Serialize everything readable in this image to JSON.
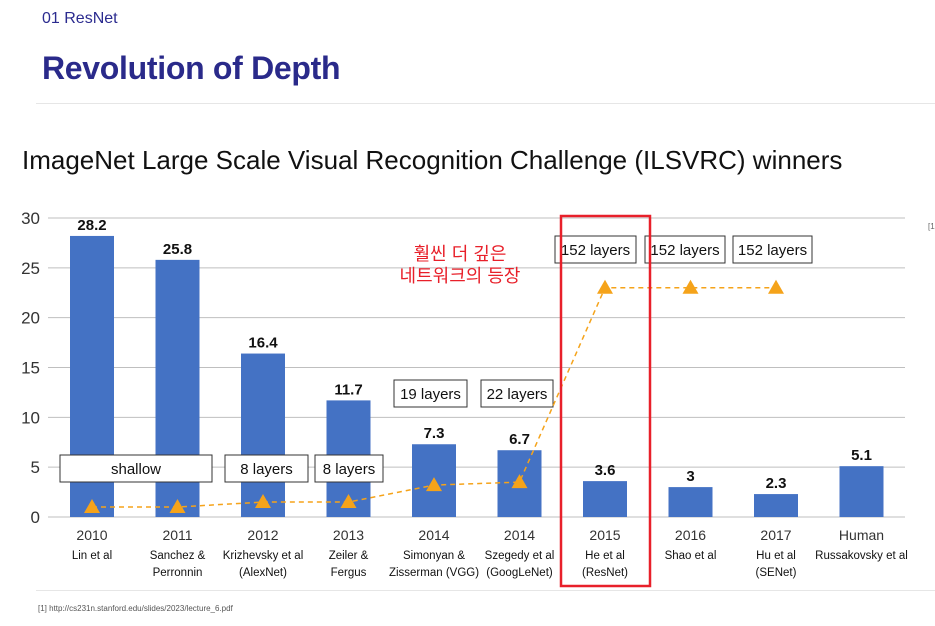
{
  "header": {
    "section": "01 ResNet",
    "title": "Revolution of Depth"
  },
  "chart_title": "ImageNet Large Scale Visual Recognition Challenge (ILSVRC) winners",
  "ref_mark": "[1",
  "annotation": [
    "훨씬 더 깊은",
    "네트워크의 등장"
  ],
  "footnote": "[1] http://cs231n.stanford.edu/slides/2023/lecture_6.pdf",
  "colors": {
    "bar": "#4472c4",
    "marker": "#f5a31a",
    "highlight": "#e8202a",
    "title": "#2a2a8a"
  },
  "chart_data": {
    "type": "bar",
    "ylim": [
      0,
      30
    ],
    "yticks": [
      0,
      5,
      10,
      15,
      20,
      25,
      30
    ],
    "grid": true,
    "categories": [
      "2010",
      "2011",
      "2012",
      "2013",
      "2014",
      "2014",
      "2015",
      "2016",
      "2017",
      "Human"
    ],
    "authors": [
      "Lin et al",
      "Sanchez &\nPerronnin",
      "Krizhevsky et al\n(AlexNet)",
      "Zeiler &\nFergus",
      "Simonyan &\nZisserman (VGG)",
      "Szegedy et al\n(GoogLeNet)",
      "He et al\n(ResNet)",
      "Shao et al",
      "Hu et al\n(SENet)",
      "Russakovsky et al"
    ],
    "values": [
      28.2,
      25.8,
      16.4,
      11.7,
      7.3,
      6.7,
      3.6,
      3,
      2.3,
      5.1
    ],
    "value_labels": [
      "28.2",
      "25.8",
      "16.4",
      "11.7",
      "7.3",
      "6.7",
      "3.6",
      "3",
      "2.3",
      "5.1"
    ],
    "depth_markers": [
      1,
      1,
      1.5,
      1.5,
      3.2,
      3.5,
      23,
      23,
      23
    ],
    "layer_labels": [
      {
        "text": "shallow",
        "from": 0,
        "to": 1
      },
      {
        "text": "8 layers",
        "from": 2,
        "to": 2
      },
      {
        "text": "8 layers",
        "from": 3,
        "to": 3
      },
      {
        "text": "19 layers",
        "from": 4,
        "to": 4
      },
      {
        "text": "22 layers",
        "from": 5,
        "to": 5
      },
      {
        "text": "152 layers",
        "from": 6,
        "to": 6
      },
      {
        "text": "152 layers",
        "from": 7,
        "to": 7
      },
      {
        "text": "152 layers",
        "from": 8,
        "to": 8
      }
    ],
    "highlight_index": 6
  }
}
